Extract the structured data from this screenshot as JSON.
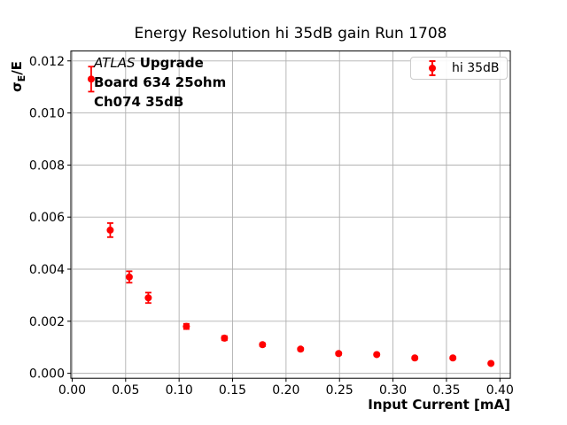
{
  "figure": {
    "title": "Energy Resolution hi 35dB gain Run 1708",
    "annotation": {
      "line1_italic": "ATLAS",
      "line1_bold": " Upgrade",
      "line2": "Board 634 25ohm",
      "line3": "Ch074 35dB"
    },
    "ylabel_parts": {
      "sigma": "σ",
      "sub": "E",
      "rest": "/E"
    },
    "colors": {
      "series": "#ff0000",
      "grid": "#b0b0b0",
      "spine": "#000000",
      "text": "#000000",
      "legend_border": "#cccccc",
      "background": "#ffffff"
    }
  },
  "chart_data": {
    "type": "scatter",
    "title": "Energy Resolution hi 35dB gain Run 1708",
    "xlabel": "Input Current [mA]",
    "ylabel": "σ_E/E",
    "grid": true,
    "legend_position": "upper right",
    "xlim": [
      -0.0012,
      0.4097
    ],
    "ylim": [
      -0.00019,
      0.01238
    ],
    "xticks": [
      0.0,
      0.05,
      0.1,
      0.15,
      0.2,
      0.25,
      0.3,
      0.35,
      0.4
    ],
    "yticks": [
      0.0,
      0.002,
      0.004,
      0.006,
      0.008,
      0.01,
      0.012
    ],
    "xtick_decimals": 2,
    "ytick_decimals": 3,
    "series": [
      {
        "name": "hi 35dB",
        "color": "#ff0000",
        "marker": "circle",
        "x": [
          0.0178,
          0.0356,
          0.0534,
          0.0712,
          0.1068,
          0.1424,
          0.178,
          0.2136,
          0.2492,
          0.2848,
          0.3204,
          0.356,
          0.3916
        ],
        "y": [
          0.0113,
          0.0055,
          0.0037,
          0.0029,
          0.0018,
          0.00135,
          0.0011,
          0.00093,
          0.00076,
          0.00072,
          0.00059,
          0.00059,
          0.00038
        ],
        "yerr": [
          0.00048,
          0.00027,
          0.00022,
          0.0002,
          0.0001,
          8e-05,
          6e-05,
          5e-05,
          5e-05,
          4e-05,
          4e-05,
          4e-05,
          3e-05
        ]
      }
    ]
  }
}
